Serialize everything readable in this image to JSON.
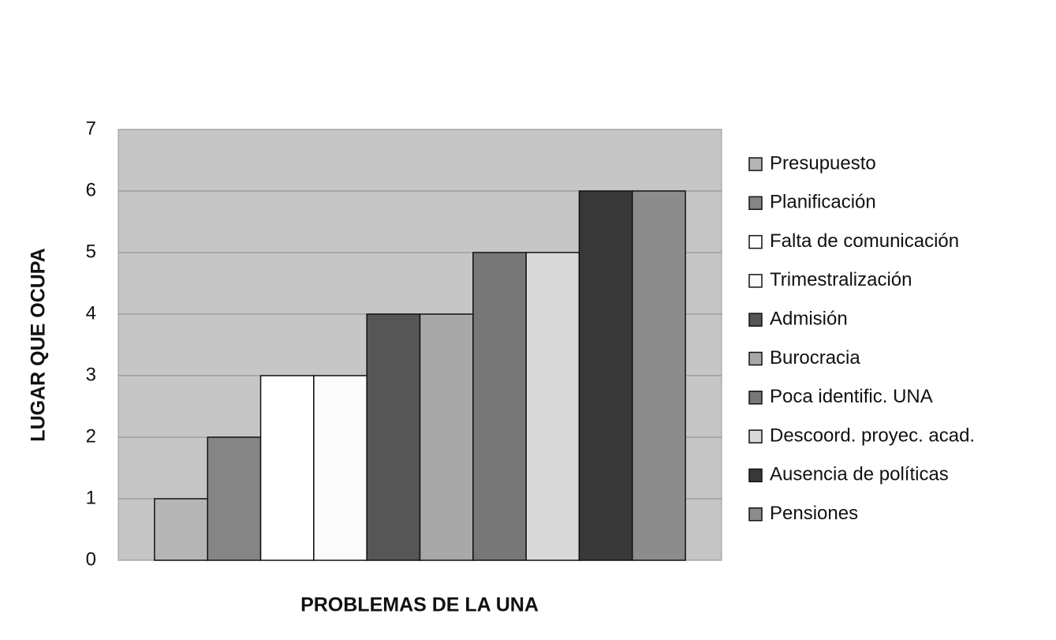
{
  "chart_data": {
    "type": "bar",
    "x_label": "PROBLEMAS DE LA UNA",
    "y_label": "LUGAR QUE OCUPA",
    "categories": [
      null
    ],
    "series": [
      {
        "name": "Presupuesto",
        "color": "#b5b5b5",
        "values": [
          1
        ]
      },
      {
        "name": "Planificación",
        "color": "#858585",
        "values": [
          2
        ]
      },
      {
        "name": "Falta de comunicación",
        "color": "#ffffff",
        "values": [
          3
        ]
      },
      {
        "name": "Trimestralización",
        "color": "#fbfbfb",
        "values": [
          3
        ]
      },
      {
        "name": "Admisión",
        "color": "#565656",
        "values": [
          4
        ]
      },
      {
        "name": "Burocracia",
        "color": "#a8a8a8",
        "values": [
          4
        ]
      },
      {
        "name": "Poca identific. UNA",
        "color": "#777777",
        "values": [
          5
        ]
      },
      {
        "name": "Descoord. proyec. acad.",
        "color": "#d9d9d9",
        "values": [
          5
        ]
      },
      {
        "name": "Ausencia de políticas",
        "color": "#383838",
        "values": [
          6
        ]
      },
      {
        "name": "Pensiones",
        "color": "#8c8c8c",
        "values": [
          6
        ]
      }
    ],
    "ylim": [
      0,
      7
    ],
    "yticks": [
      0,
      1,
      2,
      3,
      4,
      5,
      6,
      7
    ],
    "grid": true,
    "legend": "right"
  }
}
